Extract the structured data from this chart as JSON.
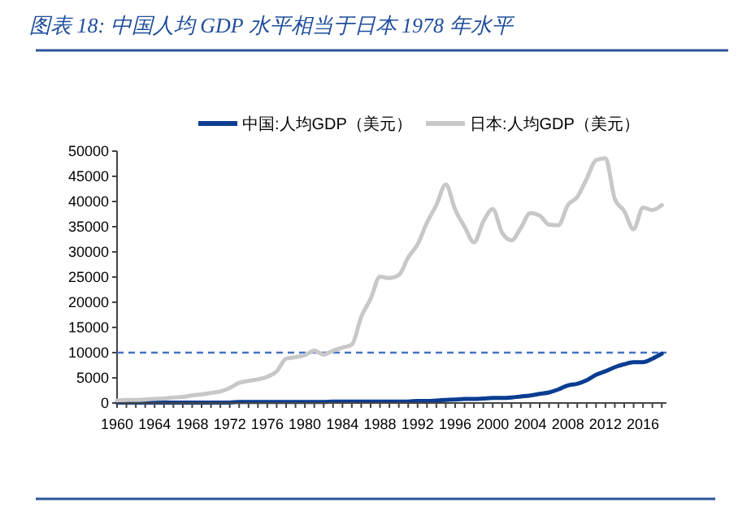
{
  "chart_data": {
    "type": "line",
    "title": "图表 18:  中国人均 GDP 水平相当于日本 1978 年水平",
    "x": [
      1960,
      1961,
      1962,
      1963,
      1964,
      1965,
      1966,
      1967,
      1968,
      1969,
      1970,
      1971,
      1972,
      1973,
      1974,
      1975,
      1976,
      1977,
      1978,
      1979,
      1980,
      1981,
      1982,
      1983,
      1984,
      1985,
      1986,
      1987,
      1988,
      1989,
      1990,
      1991,
      1992,
      1993,
      1994,
      1995,
      1996,
      1997,
      1998,
      1999,
      2000,
      2001,
      2002,
      2003,
      2004,
      2005,
      2006,
      2007,
      2008,
      2009,
      2010,
      2011,
      2012,
      2013,
      2014,
      2015,
      2016,
      2017,
      2018
    ],
    "series": [
      {
        "name": "中国:人均GDP（美元）",
        "color": "#0a3d91",
        "values": [
          100,
          100,
          100,
          100,
          100,
          100,
          100,
          100,
          100,
          100,
          100,
          100,
          100,
          200,
          200,
          200,
          200,
          200,
          200,
          200,
          200,
          200,
          200,
          300,
          300,
          300,
          300,
          300,
          300,
          300,
          300,
          300,
          400,
          400,
          500,
          600,
          700,
          800,
          800,
          900,
          1000,
          1000,
          1100,
          1300,
          1500,
          1800,
          2100,
          2700,
          3500,
          3800,
          4500,
          5600,
          6300,
          7100,
          7700,
          8100,
          8100,
          8800,
          9800
        ]
      },
      {
        "name": "日本:人均GDP（美元）",
        "color": "#c8c8c8",
        "values": [
          500,
          600,
          600,
          700,
          800,
          900,
          1100,
          1200,
          1500,
          1700,
          2000,
          2300,
          3000,
          4000,
          4400,
          4700,
          5200,
          6300,
          8800,
          9100,
          9500,
          10400,
          9600,
          10400,
          11000,
          11600,
          17100,
          20700,
          25100,
          24800,
          25400,
          28900,
          31500,
          35800,
          39300,
          43400,
          38400,
          35000,
          31900,
          36000,
          38500,
          33800,
          32300,
          34800,
          37700,
          37200,
          35400,
          35300,
          39300,
          40900,
          44500,
          48200,
          48600,
          40500,
          38100,
          34500,
          38800,
          38300,
          39300
        ]
      }
    ],
    "xlim": [
      1960,
      2018.5
    ],
    "xticks": [
      1960,
      {
        "value": 1961,
        "label": null
      },
      {
        "value": 1962,
        "label": null
      },
      {
        "value": 1963,
        "label": null
      },
      1964,
      {
        "value": 1965,
        "label": null
      },
      {
        "value": 1966,
        "label": null
      },
      {
        "value": 1967,
        "label": null
      },
      1968,
      {
        "value": 1969,
        "label": null
      },
      {
        "value": 1970,
        "label": null
      },
      {
        "value": 1971,
        "label": null
      },
      1972,
      {
        "value": 1973,
        "label": null
      },
      {
        "value": 1974,
        "label": null
      },
      {
        "value": 1975,
        "label": null
      },
      1976,
      {
        "value": 1977,
        "label": null
      },
      {
        "value": 1978,
        "label": null
      },
      {
        "value": 1979,
        "label": null
      },
      1980,
      {
        "value": 1981,
        "label": null
      },
      {
        "value": 1982,
        "label": null
      },
      {
        "value": 1983,
        "label": null
      },
      1984,
      {
        "value": 1985,
        "label": null
      },
      {
        "value": 1986,
        "label": null
      },
      {
        "value": 1987,
        "label": null
      },
      1988,
      {
        "value": 1989,
        "label": null
      },
      {
        "value": 1990,
        "label": null
      },
      {
        "value": 1991,
        "label": null
      },
      1992,
      {
        "value": 1993,
        "label": null
      },
      {
        "value": 1994,
        "label": null
      },
      {
        "value": 1995,
        "label": null
      },
      1996,
      {
        "value": 1997,
        "label": null
      },
      {
        "value": 1998,
        "label": null
      },
      {
        "value": 1999,
        "label": null
      },
      2000,
      {
        "value": 2001,
        "label": null
      },
      {
        "value": 2002,
        "label": null
      },
      {
        "value": 2003,
        "label": null
      },
      2004,
      {
        "value": 2005,
        "label": null
      },
      {
        "value": 2006,
        "label": null
      },
      {
        "value": 2007,
        "label": null
      },
      2008,
      {
        "value": 2009,
        "label": null
      },
      {
        "value": 2010,
        "label": null
      },
      {
        "value": 2011,
        "label": null
      },
      2012,
      {
        "value": 2013,
        "label": null
      },
      {
        "value": 2014,
        "label": null
      },
      {
        "value": 2015,
        "label": null
      },
      2016,
      {
        "value": 2017,
        "label": null
      },
      {
        "value": 2018,
        "label": null
      }
    ],
    "ylim": [
      0,
      50000
    ],
    "yticks": [
      0,
      5000,
      10000,
      15000,
      20000,
      25000,
      30000,
      35000,
      40000,
      45000,
      50000
    ],
    "ref_lines": [
      {
        "axis": "y",
        "value": 10000,
        "color": "#4472c4",
        "line_style": "dashed"
      }
    ],
    "legend": "top",
    "grid": false,
    "marker": "none",
    "line_style": "solid"
  }
}
